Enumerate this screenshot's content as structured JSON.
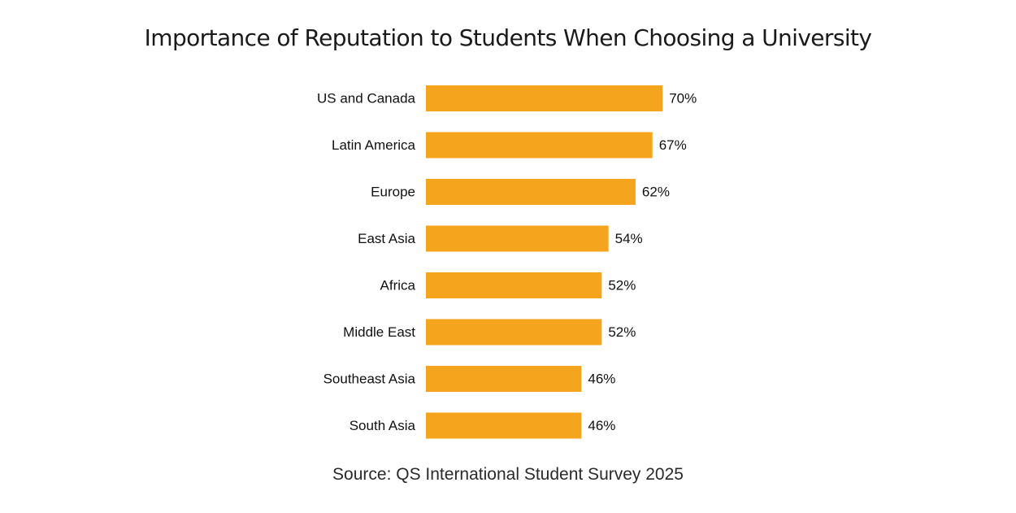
{
  "chart_data": {
    "type": "bar",
    "orientation": "horizontal",
    "title": "Importance of Reputation to Students When Choosing a University",
    "categories": [
      "US and Canada",
      "Latin America",
      "Europe",
      "East Asia",
      "Africa",
      "Middle East",
      "Southeast Asia",
      "South Asia"
    ],
    "values": [
      70,
      67,
      62,
      54,
      52,
      52,
      46,
      46
    ],
    "value_labels": [
      "70%",
      "67%",
      "62%",
      "54%",
      "52%",
      "52%",
      "46%",
      "46%"
    ],
    "unit": "%",
    "xlabel": "",
    "ylabel": "",
    "grid": false,
    "legend": "none",
    "bar_color": "#F4A41D"
  },
  "source": "Source: QS International Student Survey 2025"
}
